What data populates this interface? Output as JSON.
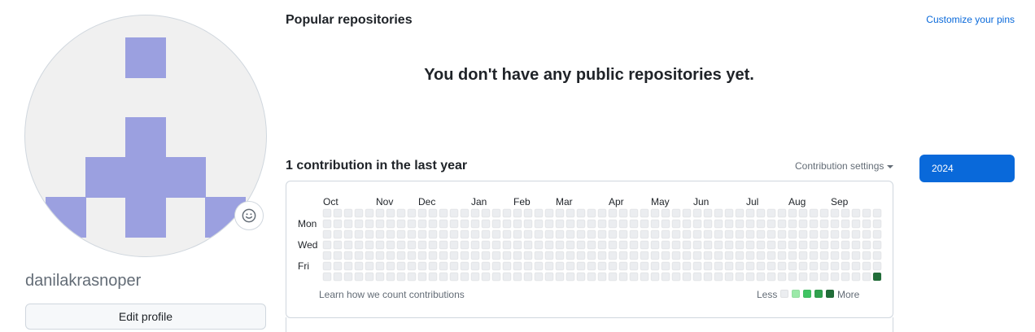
{
  "profile": {
    "username": "danilakrasnoper",
    "edit_label": "Edit profile",
    "status_icon": "smiley-icon",
    "avatar_color": "#9ba0e0"
  },
  "repositories": {
    "title": "Popular repositories",
    "customize_label": "Customize your pins",
    "empty_message": "You don't have any public repositories yet."
  },
  "contributions": {
    "title": "1 contribution in the last year",
    "settings_label": "Contribution settings",
    "year": "2024",
    "months": [
      "Oct",
      "Nov",
      "Dec",
      "Jan",
      "Feb",
      "Mar",
      "Apr",
      "May",
      "Jun",
      "Jul",
      "Aug",
      "Sep"
    ],
    "days": [
      "Mon",
      "Wed",
      "Fri"
    ],
    "learn_label": "Learn how we count contributions",
    "legend_less": "Less",
    "legend_more": "More",
    "weeks": 53,
    "last_week_days": 7,
    "active_cells": [
      {
        "week": 52,
        "day": 6,
        "level": 4
      }
    ],
    "level_colors": [
      "#ebedf0",
      "#9be9a8",
      "#40c463",
      "#30a14e",
      "#216e39"
    ]
  }
}
